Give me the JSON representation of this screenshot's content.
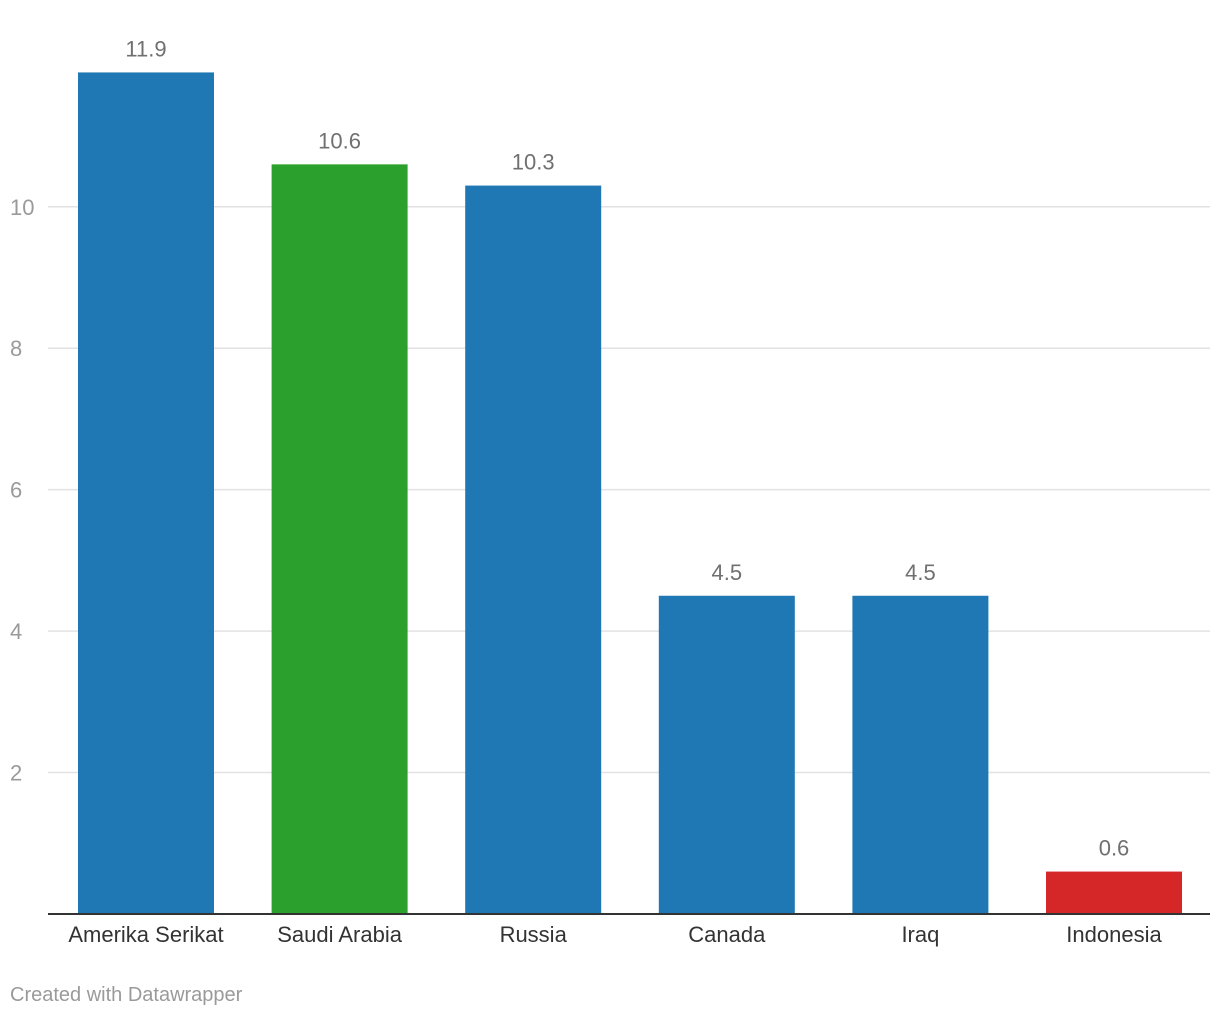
{
  "chart_data": {
    "type": "bar",
    "title": "",
    "xlabel": "",
    "ylabel": "",
    "categories": [
      "Amerika Serikat",
      "Saudi Arabia",
      "Russia",
      "Canada",
      "Iraq",
      "Indonesia"
    ],
    "values": [
      11.9,
      10.6,
      10.3,
      4.5,
      4.5,
      0.6
    ],
    "value_labels": [
      "11.9",
      "10.6",
      "10.3",
      "4.5",
      "4.5",
      "0.6"
    ],
    "colors": [
      "#1f77b4",
      "#2ca02c",
      "#1f77b4",
      "#1f77b4",
      "#1f77b4",
      "#d62728"
    ],
    "ylim": [
      0,
      12.5
    ],
    "yticks": [
      2,
      4,
      6,
      8,
      10
    ],
    "grid": true,
    "legend": "none"
  },
  "footer": {
    "credit": "Created with Datawrapper"
  }
}
